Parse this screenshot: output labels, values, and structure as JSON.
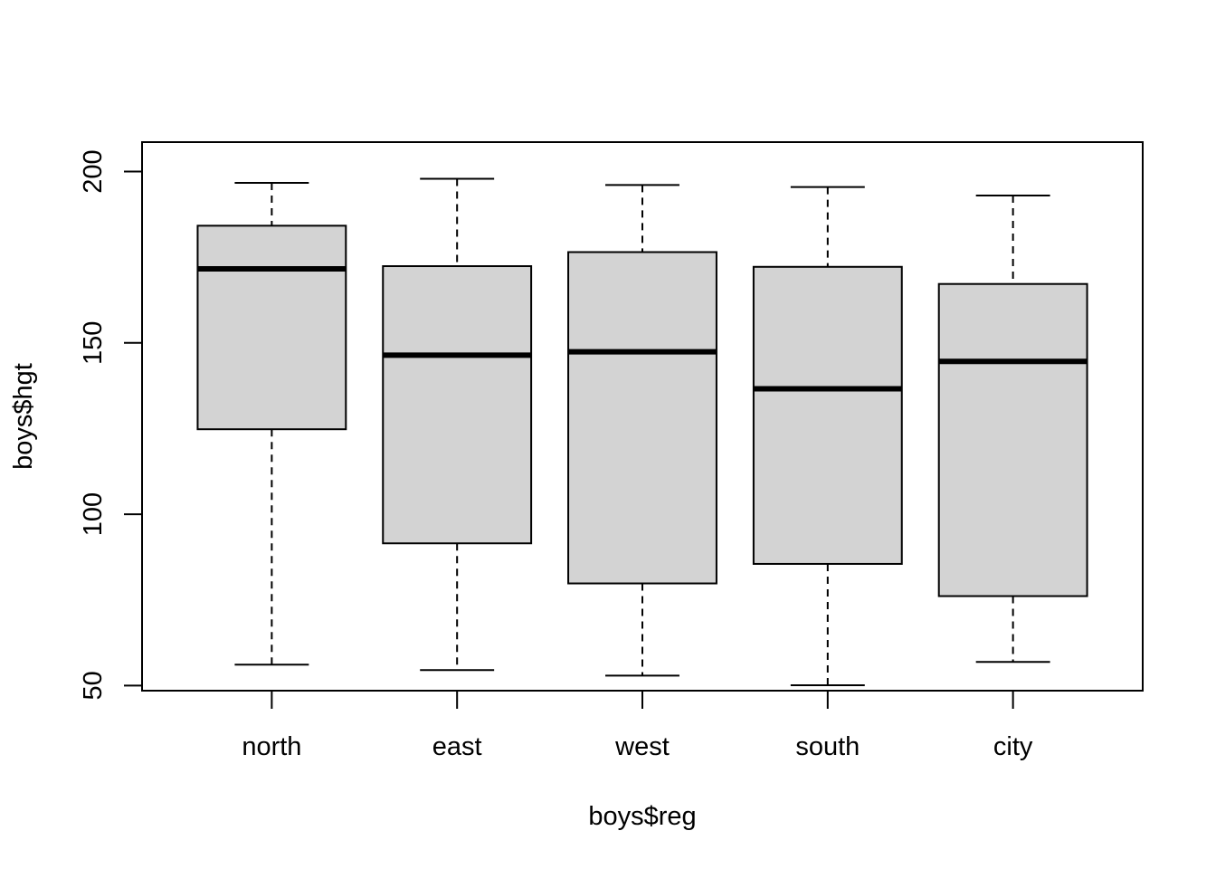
{
  "chart_data": {
    "type": "boxplot",
    "title": "",
    "xlabel": "boys$reg",
    "ylabel": "boys$hgt",
    "ylim": [
      48.5,
      208.6
    ],
    "yticks": [
      50,
      100,
      150,
      200
    ],
    "yticks_text": [
      "50",
      "100",
      "150",
      "200"
    ],
    "grid": false,
    "legend": "none",
    "box_fill": "#d3d3d3",
    "categories": [
      "north",
      "east",
      "west",
      "south",
      "city"
    ],
    "boxes": [
      {
        "category": "north",
        "min": 56.1,
        "q1": 124.8,
        "median": 171.6,
        "q3": 184.2,
        "max": 196.7
      },
      {
        "category": "east",
        "min": 54.5,
        "q1": 91.5,
        "median": 146.4,
        "q3": 172.4,
        "max": 197.9
      },
      {
        "category": "west",
        "min": 52.9,
        "q1": 79.8,
        "median": 147.4,
        "q3": 176.5,
        "max": 196.1
      },
      {
        "category": "south",
        "min": 50.1,
        "q1": 85.5,
        "median": 136.6,
        "q3": 172.2,
        "max": 195.5
      },
      {
        "category": "city",
        "min": 56.9,
        "q1": 76.1,
        "median": 144.6,
        "q3": 167.2,
        "max": 193.0
      }
    ]
  }
}
